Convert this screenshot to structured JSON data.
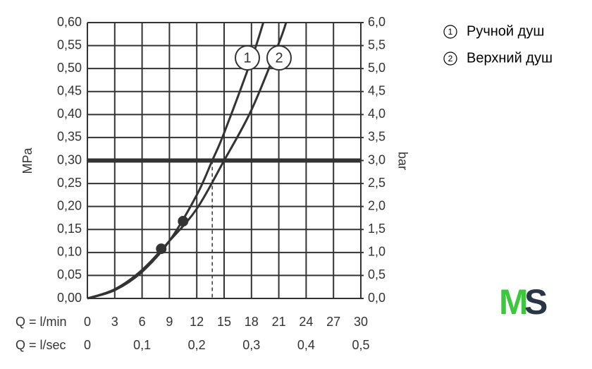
{
  "chart_data": {
    "type": "line",
    "xlabel": "Q = l/min",
    "x2label": "Q = l/sec",
    "ylabel": "MPa",
    "y2label": "bar",
    "xlim": [
      0,
      30
    ],
    "xticks": [
      0,
      3,
      6,
      9,
      12,
      15,
      18,
      21,
      24,
      27,
      30
    ],
    "x2lim": [
      0,
      0.5
    ],
    "x2ticks": [
      {
        "value": 0,
        "label": "0"
      },
      {
        "value": 0.1,
        "label": "0,1"
      },
      {
        "value": 0.2,
        "label": "0,2"
      },
      {
        "value": 0.3,
        "label": "0,3"
      },
      {
        "value": 0.4,
        "label": "0,4"
      },
      {
        "value": 0.5,
        "label": "0,5"
      }
    ],
    "ylim": [
      0,
      0.6
    ],
    "yticks": [
      {
        "value": 0,
        "label": "0,00"
      },
      {
        "value": 0.05,
        "label": "0,05"
      },
      {
        "value": 0.1,
        "label": "0,10"
      },
      {
        "value": 0.15,
        "label": "0,15"
      },
      {
        "value": 0.2,
        "label": "0,20"
      },
      {
        "value": 0.25,
        "label": "0,25"
      },
      {
        "value": 0.3,
        "label": "0,30"
      },
      {
        "value": 0.35,
        "label": "0,35"
      },
      {
        "value": 0.4,
        "label": "0,40"
      },
      {
        "value": 0.45,
        "label": "0,45"
      },
      {
        "value": 0.5,
        "label": "0,50"
      },
      {
        "value": 0.55,
        "label": "0,55"
      },
      {
        "value": 0.6,
        "label": "0,60"
      }
    ],
    "y2lim": [
      0,
      6
    ],
    "y2ticks": [
      {
        "value": 0,
        "label": "0,0"
      },
      {
        "value": 0.5,
        "label": "0,5"
      },
      {
        "value": 1,
        "label": "1,0"
      },
      {
        "value": 1.5,
        "label": "1,5"
      },
      {
        "value": 2,
        "label": "2,0"
      },
      {
        "value": 2.5,
        "label": "2,5"
      },
      {
        "value": 3,
        "label": "3,0"
      },
      {
        "value": 3.5,
        "label": "3,5"
      },
      {
        "value": 4,
        "label": "4,0"
      },
      {
        "value": 4.5,
        "label": "4,5"
      },
      {
        "value": 5,
        "label": "5,0"
      },
      {
        "value": 5.5,
        "label": "5,5"
      },
      {
        "value": 6,
        "label": "6,0"
      }
    ],
    "grid": true,
    "color": "#333333",
    "series": [
      {
        "name": "Ручной душ",
        "label": "1",
        "color": "#333333",
        "x": [
          0,
          3,
          6,
          9,
          12,
          13.7,
          15,
          18,
          19.3
        ],
        "values": [
          0,
          0.018,
          0.058,
          0.125,
          0.225,
          0.3,
          0.36,
          0.52,
          0.6
        ]
      },
      {
        "name": "Верхний душ",
        "label": "2",
        "color": "#333333",
        "x": [
          0,
          3,
          6,
          9,
          12,
          15,
          18,
          21,
          21.8
        ],
        "values": [
          0,
          0.02,
          0.062,
          0.125,
          0.195,
          0.3,
          0.41,
          0.555,
          0.6
        ]
      }
    ],
    "markers": [
      {
        "x": 8.1,
        "y": 0.108
      },
      {
        "x": 10.5,
        "y": 0.168
      }
    ],
    "reference_y": 0.3,
    "reference_x": [
      13.7,
      15
    ],
    "logo": [
      "M",
      "S"
    ]
  }
}
